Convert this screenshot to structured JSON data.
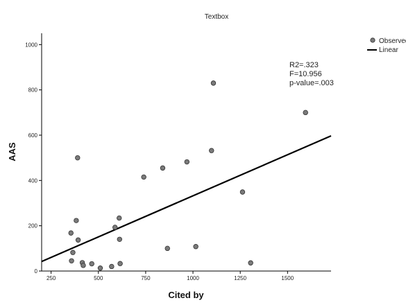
{
  "chart_data": {
    "type": "scatter",
    "title": "Textbox",
    "xlabel": "Cited by",
    "ylabel": "AAS",
    "xlim": [
      200,
      1730
    ],
    "ylim": [
      0,
      1050
    ],
    "xticks": [
      250,
      500,
      750,
      1000,
      1250,
      1500
    ],
    "yticks": [
      0,
      200,
      400,
      600,
      800,
      1000
    ],
    "grid": false,
    "legend_position": "top-right",
    "legend": [
      {
        "label": "Observed",
        "marker": "circle"
      },
      {
        "label": "Linear",
        "marker": "line"
      }
    ],
    "annotation": [
      "R2=.323",
      "F=10.956",
      "p-value=.003"
    ],
    "series": [
      {
        "name": "Observed",
        "x": [
          355,
          358,
          365,
          383,
          390,
          393,
          415,
          420,
          465,
          510,
          570,
          588,
          610,
          612,
          615,
          740,
          840,
          865,
          968,
          1015,
          1098,
          1108,
          1262,
          1305,
          1595
        ],
        "y": [
          168,
          45,
          82,
          223,
          500,
          137,
          37,
          25,
          32,
          13,
          20,
          193,
          234,
          140,
          33,
          415,
          455,
          100,
          482,
          108,
          532,
          830,
          349,
          36,
          700
        ]
      },
      {
        "name": "Linear",
        "kind": "line",
        "x": [
          200,
          1730
        ],
        "y": [
          42,
          597
        ]
      }
    ]
  },
  "colors": {
    "point_fill": "#7a7a7a",
    "point_stroke": "#333333",
    "line": "#000000"
  }
}
